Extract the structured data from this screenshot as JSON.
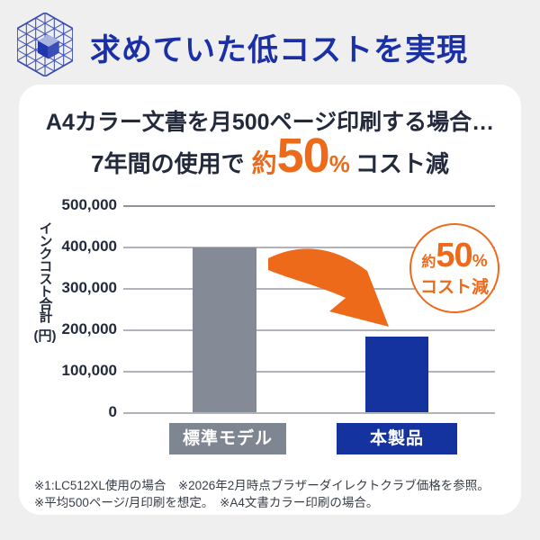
{
  "page": {
    "background": "#efeff0"
  },
  "header": {
    "title": "求めていた低コストを実現",
    "title_color": "#1b30a6",
    "logo_icon": "isometric-cube-lattice-icon"
  },
  "card": {
    "title": "A4カラー文書を月500ページ印刷する場合…",
    "headline": {
      "prefix": "7年間の使用で",
      "approx": "約",
      "value": "50",
      "unit": "%",
      "suffix": "コスト減"
    },
    "footnotes": [
      "※1:LC512XL使用の場合　※2026年2月時点ブラザーダイレクトクラブ価格を参照。",
      "※平均500ページ/月印刷を想定。　※A4文書カラー印刷の場合。"
    ]
  },
  "badge": {
    "approx": "約",
    "value": "50",
    "unit": "%",
    "label": "コスト減",
    "color": "#ee6a1b"
  },
  "chart_data": {
    "type": "bar",
    "categories": [
      "標準モデル※1",
      "本製品"
    ],
    "values": [
      397000,
      182000
    ],
    "bar_colors": [
      "#848b96",
      "#14339e"
    ],
    "title": "7年間の使用で約50%コスト減",
    "xlabel": "",
    "ylabel": "インクコスト合計(円)",
    "ylabel_vertical": "インクコスト合計",
    "ylabel_unit": "(円)",
    "yticks": [
      "500,000",
      "400,000",
      "300,000",
      "200,000",
      "100,000",
      "0"
    ],
    "ylim": [
      0,
      500000
    ],
    "grid": true,
    "legend_position": "none",
    "annotation": "約50%コスト減（オレンジの矢印が標準モデルの棒から本製品の棒へ）"
  },
  "colors": {
    "accent_orange": "#ee6a1b",
    "navy_text": "#222a3c",
    "header_blue": "#1b30a6",
    "bar_blue": "#14339e",
    "bar_gray": "#848b96",
    "gridline": "#b0b3b9"
  }
}
